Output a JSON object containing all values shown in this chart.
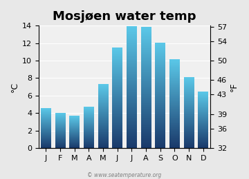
{
  "months": [
    "J",
    "F",
    "M",
    "A",
    "M",
    "J",
    "J",
    "A",
    "S",
    "O",
    "N",
    "D"
  ],
  "values": [
    4.5,
    4.0,
    3.7,
    4.7,
    7.3,
    11.5,
    13.9,
    13.8,
    12.0,
    10.1,
    8.1,
    6.4
  ],
  "title": "Mosjøen water temp",
  "ylabel_left": "°C",
  "ylabel_right": "°F",
  "ylim_c": [
    0,
    14
  ],
  "yticks_c": [
    0,
    2,
    4,
    6,
    8,
    10,
    12,
    14
  ],
  "yticks_f": [
    32,
    36,
    39,
    43,
    46,
    50,
    54,
    57
  ],
  "background_color": "#e8e8e8",
  "plot_bg_color": "#f0f0f0",
  "bar_color_top": "#5bc8e8",
  "bar_color_bottom": "#1a3a6b",
  "title_fontsize": 13,
  "axis_fontsize": 9,
  "tick_fontsize": 8,
  "watermark": "© www.seatemperature.org"
}
